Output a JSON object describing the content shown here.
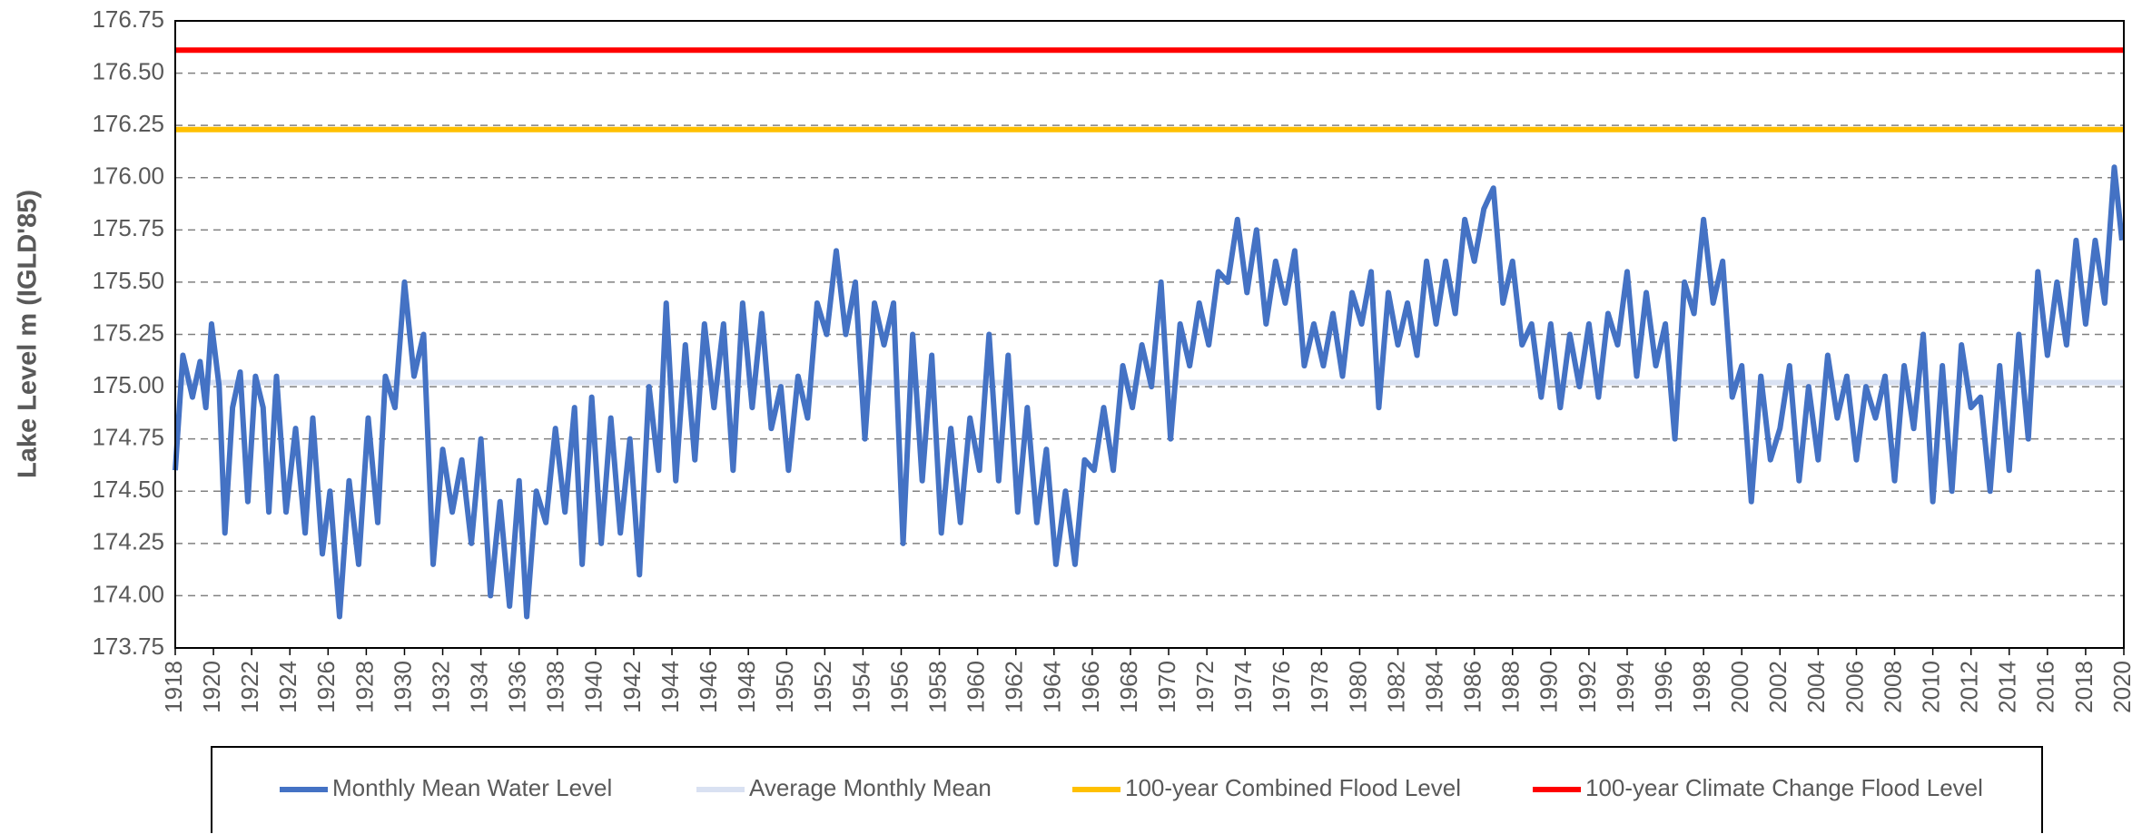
{
  "chart_data": {
    "type": "line",
    "y_label": "Lake Level m (IGLD'85)",
    "xlim": [
      1918,
      2020
    ],
    "xticks": [
      1918,
      1920,
      1922,
      1924,
      1926,
      1928,
      1930,
      1932,
      1934,
      1936,
      1938,
      1940,
      1942,
      1944,
      1946,
      1948,
      1950,
      1952,
      1954,
      1956,
      1958,
      1960,
      1962,
      1964,
      1966,
      1968,
      1970,
      1972,
      1974,
      1976,
      1978,
      1980,
      1982,
      1984,
      1986,
      1988,
      1990,
      1992,
      1994,
      1996,
      1998,
      2000,
      2002,
      2004,
      2006,
      2008,
      2010,
      2012,
      2014,
      2016,
      2018,
      2020
    ],
    "ylim": [
      173.75,
      176.75
    ],
    "yticks": [
      173.75,
      {
        "value": 174,
        "label": "174.00"
      },
      174.25,
      {
        "value": 174.5,
        "label": "174.50"
      },
      174.75,
      {
        "value": 175,
        "label": "175.00"
      },
      175.25,
      {
        "value": 175.5,
        "label": "175.50"
      },
      175.75,
      {
        "value": 176,
        "label": "176.00"
      },
      176.25,
      {
        "value": 176.5,
        "label": "176.50"
      },
      176.75
    ],
    "grid": true,
    "legend": "bottom",
    "series": [
      {
        "name": "Monthly Mean Water Level",
        "color": "#4472c4",
        "x": [
          1918.0,
          1918.4,
          1918.9,
          1919.3,
          1919.6,
          1919.9,
          1920.3,
          1920.6,
          1921.0,
          1921.4,
          1921.8,
          1922.2,
          1922.6,
          1922.9,
          1923.3,
          1923.8,
          1924.3,
          1924.8,
          1925.2,
          1925.7,
          1926.1,
          1926.6,
          1927.1,
          1927.6,
          1928.1,
          1928.6,
          1929.0,
          1929.5,
          1930.0,
          1930.5,
          1931.0,
          1931.5,
          1932.0,
          1932.5,
          1933.0,
          1933.5,
          1934.0,
          1934.5,
          1935.0,
          1935.5,
          1936.0,
          1936.4,
          1936.9,
          1937.4,
          1937.9,
          1938.4,
          1938.9,
          1939.3,
          1939.8,
          1940.3,
          1940.8,
          1941.3,
          1941.8,
          1942.3,
          1942.8,
          1943.3,
          1943.7,
          1944.2,
          1944.7,
          1945.2,
          1945.7,
          1946.2,
          1946.7,
          1947.2,
          1947.7,
          1948.2,
          1948.7,
          1949.2,
          1949.7,
          1950.1,
          1950.6,
          1951.1,
          1951.6,
          1952.1,
          1952.6,
          1953.1,
          1953.6,
          1954.1,
          1954.6,
          1955.1,
          1955.6,
          1956.1,
          1956.6,
          1957.1,
          1957.6,
          1958.1,
          1958.6,
          1959.1,
          1959.6,
          1960.1,
          1960.6,
          1961.1,
          1961.6,
          1962.1,
          1962.6,
          1963.1,
          1963.6,
          1964.1,
          1964.6,
          1965.1,
          1965.6,
          1966.1,
          1966.6,
          1967.1,
          1967.6,
          1968.1,
          1968.6,
          1969.1,
          1969.6,
          1970.1,
          1970.6,
          1971.1,
          1971.6,
          1972.1,
          1972.6,
          1973.1,
          1973.6,
          1974.1,
          1974.6,
          1975.1,
          1975.6,
          1976.1,
          1976.6,
          1977.1,
          1977.6,
          1978.1,
          1978.6,
          1979.1,
          1979.6,
          1980.1,
          1980.6,
          1981.0,
          1981.5,
          1982.0,
          1982.5,
          1983.0,
          1983.5,
          1984.0,
          1984.5,
          1985.0,
          1985.5,
          1986.0,
          1986.5,
          1987.0,
          1987.5,
          1988.0,
          1988.5,
          1989.0,
          1989.5,
          1990.0,
          1990.5,
          1991.0,
          1991.5,
          1992.0,
          1992.5,
          1993.0,
          1993.5,
          1994.0,
          1994.5,
          1995.0,
          1995.5,
          1996.0,
          1996.5,
          1997.0,
          1997.5,
          1998.0,
          1998.5,
          1999.0,
          1999.5,
          2000.0,
          2000.5,
          2001.0,
          2001.5,
          2002.0,
          2002.5,
          2003.0,
          2003.5,
          2004.0,
          2004.5,
          2005.0,
          2005.5,
          2006.0,
          2006.5,
          2007.0,
          2007.5,
          2008.0,
          2008.5,
          2009.0,
          2009.5,
          2010.0,
          2010.5,
          2011.0,
          2011.5,
          2012.0,
          2012.5,
          2013.0,
          2013.5,
          2014.0,
          2014.5,
          2015.0,
          2015.5,
          2016.0,
          2016.5,
          2017.0,
          2017.5,
          2018.0,
          2018.5,
          2019.0,
          2019.5,
          2019.9
        ],
        "values": [
          174.6,
          175.15,
          174.95,
          175.12,
          174.9,
          175.3,
          175.0,
          174.3,
          174.9,
          175.07,
          174.45,
          175.05,
          174.9,
          174.4,
          175.05,
          174.4,
          174.8,
          174.3,
          174.85,
          174.2,
          174.5,
          173.9,
          174.55,
          174.15,
          174.85,
          174.35,
          175.05,
          174.9,
          175.5,
          175.05,
          175.25,
          174.15,
          174.7,
          174.4,
          174.65,
          174.25,
          174.75,
          174.0,
          174.45,
          173.95,
          174.55,
          173.9,
          174.5,
          174.35,
          174.8,
          174.4,
          174.9,
          174.15,
          174.95,
          174.25,
          174.85,
          174.3,
          174.75,
          174.1,
          175.0,
          174.6,
          175.4,
          174.55,
          175.2,
          174.65,
          175.3,
          174.9,
          175.3,
          174.6,
          175.4,
          174.9,
          175.35,
          174.8,
          175.0,
          174.6,
          175.05,
          174.85,
          175.4,
          175.25,
          175.65,
          175.25,
          175.5,
          174.75,
          175.4,
          175.2,
          175.4,
          174.25,
          175.25,
          174.55,
          175.15,
          174.3,
          174.8,
          174.35,
          174.85,
          174.6,
          175.25,
          174.55,
          175.15,
          174.4,
          174.9,
          174.35,
          174.7,
          174.15,
          174.5,
          174.15,
          174.65,
          174.6,
          174.9,
          174.6,
          175.1,
          174.9,
          175.2,
          175.0,
          175.5,
          174.75,
          175.3,
          175.1,
          175.4,
          175.2,
          175.55,
          175.5,
          175.8,
          175.45,
          175.75,
          175.3,
          175.6,
          175.4,
          175.65,
          175.1,
          175.3,
          175.1,
          175.35,
          175.05,
          175.45,
          175.3,
          175.55,
          174.9,
          175.45,
          175.2,
          175.4,
          175.15,
          175.6,
          175.3,
          175.6,
          175.35,
          175.8,
          175.6,
          175.85,
          175.95,
          175.4,
          175.6,
          175.2,
          175.3,
          174.95,
          175.3,
          174.9,
          175.25,
          175.0,
          175.3,
          174.95,
          175.35,
          175.2,
          175.55,
          175.05,
          175.45,
          175.1,
          175.3,
          174.75,
          175.5,
          175.35,
          175.8,
          175.4,
          175.6,
          174.95,
          175.1,
          174.45,
          175.05,
          174.65,
          174.8,
          175.1,
          174.55,
          175.0,
          174.65,
          175.15,
          174.85,
          175.05,
          174.65,
          175.0,
          174.85,
          175.05,
          174.55,
          175.1,
          174.8,
          175.25,
          174.45,
          175.1,
          174.5,
          175.2,
          174.9,
          174.95,
          174.5,
          175.1,
          174.6,
          175.25,
          174.75,
          175.55,
          175.15,
          175.5,
          175.2,
          175.7,
          175.3,
          175.7,
          175.4,
          176.05,
          175.7
        ]
      },
      {
        "name": "Average Monthly Mean",
        "color": "#d9e1f2",
        "x": [
          1918,
          2020
        ],
        "values": [
          175.02,
          175.02
        ]
      },
      {
        "name": "100-year Combined Flood Level",
        "color": "#ffc000",
        "x": [
          1918,
          2020
        ],
        "values": [
          176.23,
          176.23
        ]
      },
      {
        "name": "100-year Climate Change Flood Level",
        "color": "#ff0000",
        "x": [
          1918,
          2020
        ],
        "values": [
          176.61,
          176.61
        ]
      }
    ]
  }
}
